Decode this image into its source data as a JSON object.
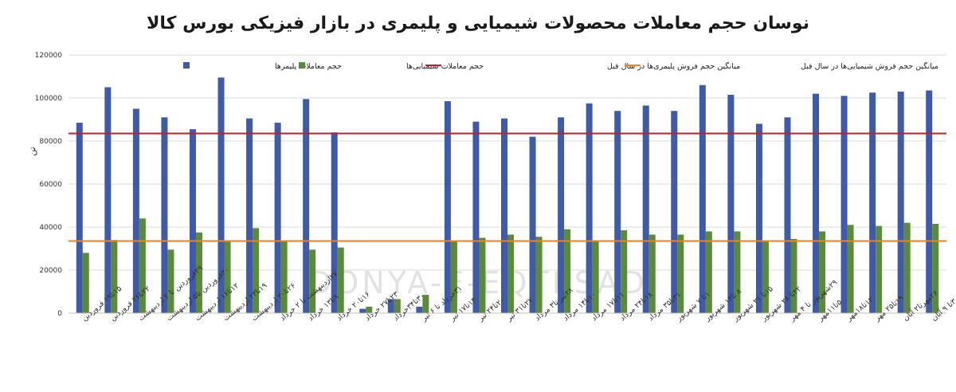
{
  "chart_data": {
    "type": "bar",
    "title": "نوسان حجم معاملات محصولات شیمیایی و پلیمری در بازار فیزیکی بورس کالا",
    "ylabel": "تن",
    "ylim": [
      0,
      120000
    ],
    "yticks": [
      0,
      20000,
      40000,
      60000,
      80000,
      100000,
      120000
    ],
    "ytick_labels": [
      "0",
      "20000",
      "40000",
      "60000",
      "80000",
      "100000",
      "120000"
    ],
    "watermark": "DONYA-E-EQTESAD",
    "categories": [
      "۱۵تا۱۹ فروردین",
      "۲۲تا۲۶ فروردین",
      "۲۹فروردین تا ۲ اردیبهشت",
      "۳۰فروردین تا۵ اردیبهشت",
      "۱۲تا۱۶ اردیبهشت",
      "۱۹تا۲۳ اردیبهشت",
      "۲۶تا۳۰ اردیبهشت",
      "۲۷اردیبهشت تا ۲ خرداد",
      "۹تا۱۳ خرداد",
      "۱۶تا۲۰ خرداد",
      "۲۳تا۲۷ خرداد",
      "۳۰تا۳۴خرداد",
      "۳۱خرداد تا ۶ تیر",
      "۱۳تا۱۷ تیر",
      "۲۰تا۲۴ تیر",
      "۲۷تا۳۱ تیر",
      "۲۸تیر تا۳ مرداد",
      "۱۰تا۱۴ مرداد",
      "۱۱تا۱۷ مرداد",
      "۱۸تا۲۴ مرداد",
      "۳۱تا۳۵ مرداد",
      "۱تا ۷ شهریور",
      "۸ تا۱۴ شهریور",
      "۱۵تا ۲۱ شهریور",
      "۲۲تا ۲۸ شهریور",
      "۲۹شهریور تا ۴ مهر",
      "۵تا۱۱مهر",
      "۱۲تا۱۸مهر",
      "۱۹تا۲۵ مهر",
      "۲۶مهرتا۲ آبان",
      "۳تا ۹ آبان"
    ],
    "series": [
      {
        "name": "حجم معاملات پلیمرها",
        "color": "#3f5aa6",
        "values": [
          88500,
          105000,
          95000,
          91000,
          85500,
          109500,
          90500,
          88500,
          99500,
          84000,
          2000,
          6500,
          3000,
          98500,
          89000,
          90500,
          82000,
          91000,
          97500,
          94000,
          96500,
          94000,
          106000,
          101500,
          88000,
          91000,
          102000,
          101000,
          102500,
          103000,
          103500
        ]
      },
      {
        "name": "حجم معاملات شیمیایی‌ها",
        "color": "#5a8a3a",
        "values": [
          28000,
          34000,
          44000,
          29500,
          37500,
          33500,
          39500,
          33500,
          29500,
          30500,
          3000,
          6500,
          8500,
          33500,
          35000,
          36500,
          35500,
          39000,
          33500,
          38500,
          36500,
          36500,
          38000,
          38000,
          33500,
          34500,
          38000,
          41000,
          40500,
          42000,
          41500
        ]
      }
    ],
    "reference_lines": [
      {
        "name": "میانگین حجم فروش پلیمری‌ها در سال قبل",
        "color": "#c0202a",
        "value": 83500
      },
      {
        "name": "میانگین حجم فروش شیمیایی‌ها در سال قبل",
        "color": "#f08020",
        "value": 33500
      }
    ],
    "grid": true,
    "legend_position": "top"
  }
}
